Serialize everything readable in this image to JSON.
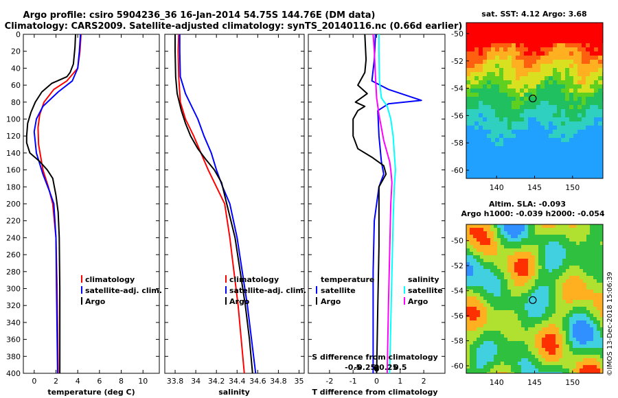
{
  "header": {
    "line1": "Argo profile: csiro 5904236_36 16-Jan-2014 54.75S 144.76E (DM data)",
    "line2": "Climatology: CARS2009. Satellite-adjusted climatology: synTS_20140116.nc (0.66d earlier)"
  },
  "colors": {
    "climatology": "#ff0000",
    "satellite": "#0000ff",
    "argo": "#000000",
    "sat_salinity": "#00ffff",
    "clim_salinity": "#ff00ff"
  },
  "watermark": "©IMOS 13-Dec-2018 15:06:39",
  "chart_data": [
    {
      "type": "line",
      "id": "temperature",
      "xlabel": "temperature (deg C)",
      "ylabel": "",
      "xlim": [
        -1,
        11.5
      ],
      "ylim": [
        400,
        0
      ],
      "xticks": [
        "0",
        "2",
        "4",
        "6",
        "8",
        "10"
      ],
      "xtick_values": [
        0,
        2,
        4,
        6,
        8,
        10
      ],
      "yticks": [
        "0",
        "20",
        "40",
        "60",
        "80",
        "100",
        "120",
        "140",
        "160",
        "180",
        "200",
        "220",
        "240",
        "260",
        "280",
        "300",
        "320",
        "340",
        "360",
        "380",
        "400"
      ],
      "ytick_values": [
        0,
        20,
        40,
        60,
        80,
        100,
        120,
        140,
        160,
        180,
        200,
        220,
        240,
        260,
        280,
        300,
        320,
        340,
        360,
        380,
        400
      ],
      "legend": [
        "climatology",
        "satellite-adj. clim.",
        "Argo"
      ],
      "series": [
        {
          "name": "climatology",
          "color": "#ff0000",
          "points": [
            [
              4.3,
              0
            ],
            [
              4.2,
              20
            ],
            [
              4.0,
              40
            ],
            [
              3.0,
              55
            ],
            [
              1.8,
              65
            ],
            [
              0.9,
              80
            ],
            [
              0.5,
              95
            ],
            [
              0.35,
              110
            ],
            [
              0.4,
              130
            ],
            [
              0.8,
              160
            ],
            [
              1.3,
              180
            ],
            [
              1.7,
              200
            ],
            [
              2.0,
              240
            ],
            [
              2.1,
              300
            ],
            [
              2.15,
              350
            ],
            [
              2.2,
              400
            ]
          ]
        },
        {
          "name": "satellite-adj. clim.",
          "color": "#0000ff",
          "points": [
            [
              4.25,
              0
            ],
            [
              4.15,
              20
            ],
            [
              4.0,
              40
            ],
            [
              3.5,
              55
            ],
            [
              2.2,
              68
            ],
            [
              0.8,
              85
            ],
            [
              0.2,
              100
            ],
            [
              0.0,
              115
            ],
            [
              0.2,
              140
            ],
            [
              0.8,
              165
            ],
            [
              1.4,
              185
            ],
            [
              1.8,
              200
            ],
            [
              2.0,
              240
            ],
            [
              2.05,
              300
            ],
            [
              2.1,
              350
            ],
            [
              2.15,
              400
            ]
          ]
        },
        {
          "name": "Argo",
          "color": "#000000",
          "points": [
            [
              3.8,
              0
            ],
            [
              3.75,
              15
            ],
            [
              3.6,
              35
            ],
            [
              3.3,
              45
            ],
            [
              3.0,
              50
            ],
            [
              1.6,
              58
            ],
            [
              0.7,
              68
            ],
            [
              0.1,
              80
            ],
            [
              -0.3,
              92
            ],
            [
              -0.6,
              105
            ],
            [
              -0.7,
              120
            ],
            [
              -0.7,
              128
            ],
            [
              -0.4,
              140
            ],
            [
              0.5,
              150
            ],
            [
              1.2,
              160
            ],
            [
              1.7,
              170
            ],
            [
              2.0,
              190
            ],
            [
              2.2,
              210
            ],
            [
              2.3,
              240
            ],
            [
              2.35,
              300
            ],
            [
              2.35,
              400
            ]
          ]
        }
      ]
    },
    {
      "type": "line",
      "id": "salinity",
      "xlabel": "salinity",
      "ylabel": "",
      "xlim": [
        33.7,
        35.05
      ],
      "ylim": [
        400,
        0
      ],
      "xticks": [
        "33.8",
        "34",
        "34.2",
        "34.4",
        "34.6",
        "34.8",
        "35"
      ],
      "xtick_values": [
        33.8,
        34.0,
        34.2,
        34.4,
        34.6,
        34.8,
        35.0
      ],
      "legend": [
        "climatology",
        "satellite-adj. clim.",
        "Argo"
      ],
      "series": [
        {
          "name": "climatology",
          "color": "#ff0000",
          "points": [
            [
              33.835,
              0
            ],
            [
              33.83,
              20
            ],
            [
              33.835,
              50
            ],
            [
              33.85,
              80
            ],
            [
              33.9,
              100
            ],
            [
              33.98,
              120
            ],
            [
              34.05,
              140
            ],
            [
              34.12,
              160
            ],
            [
              34.2,
              180
            ],
            [
              34.28,
              200
            ],
            [
              34.33,
              240
            ],
            [
              34.37,
              280
            ],
            [
              34.41,
              320
            ],
            [
              34.44,
              360
            ],
            [
              34.47,
              400
            ]
          ]
        },
        {
          "name": "satellite-adj. clim.",
          "color": "#0000ff",
          "points": [
            [
              33.845,
              0
            ],
            [
              33.845,
              20
            ],
            [
              33.85,
              50
            ],
            [
              33.9,
              70
            ],
            [
              33.96,
              85
            ],
            [
              34.02,
              100
            ],
            [
              34.08,
              120
            ],
            [
              34.15,
              140
            ],
            [
              34.2,
              160
            ],
            [
              34.26,
              180
            ],
            [
              34.33,
              200
            ],
            [
              34.4,
              240
            ],
            [
              34.45,
              280
            ],
            [
              34.5,
              320
            ],
            [
              34.54,
              360
            ],
            [
              34.58,
              400
            ]
          ]
        },
        {
          "name": "Argo",
          "color": "#000000",
          "points": [
            [
              33.8,
              0
            ],
            [
              33.8,
              20
            ],
            [
              33.805,
              50
            ],
            [
              33.82,
              70
            ],
            [
              33.86,
              90
            ],
            [
              33.9,
              105
            ],
            [
              33.95,
              120
            ],
            [
              34.02,
              135
            ],
            [
              34.1,
              148
            ],
            [
              34.18,
              160
            ],
            [
              34.25,
              175
            ],
            [
              34.3,
              200
            ],
            [
              34.38,
              240
            ],
            [
              34.43,
              280
            ],
            [
              34.48,
              320
            ],
            [
              34.52,
              360
            ],
            [
              34.55,
              400
            ]
          ]
        }
      ]
    },
    {
      "type": "line",
      "id": "difference",
      "xlabel": "T difference from climatology",
      "secondary_xlabel": "S difference from climatology",
      "xlim": [
        -2.9,
        2.9
      ],
      "ylim": [
        400,
        0
      ],
      "xticks": [
        "-2",
        "-1",
        "0",
        "1",
        "2"
      ],
      "xtick_values": [
        -2,
        -1,
        0,
        1,
        2
      ],
      "secondary_xticks": [
        "-0.5",
        "-0.25",
        "0",
        "0.25",
        "0.5"
      ],
      "secondary_xtick_values": [
        -0.5,
        -0.25,
        0,
        0.25,
        0.5
      ],
      "legend_left_title": "temperature",
      "legend_right_title": "salinity",
      "legend_left": [
        "satellite",
        "Argo"
      ],
      "legend_right": [
        "satellite",
        "Argo"
      ],
      "series": [
        {
          "name": "T satellite",
          "color": "#0000ff",
          "points": [
            [
              -0.05,
              0
            ],
            [
              -0.1,
              30
            ],
            [
              -0.2,
              55
            ],
            [
              0.5,
              65
            ],
            [
              1.9,
              78
            ],
            [
              0.5,
              82
            ],
            [
              0.05,
              90
            ],
            [
              0.1,
              120
            ],
            [
              0.2,
              150
            ],
            [
              0.3,
              165
            ],
            [
              0.1,
              180
            ],
            [
              -0.1,
              220
            ],
            [
              -0.15,
              280
            ],
            [
              -0.15,
              400
            ]
          ]
        },
        {
          "name": "T Argo",
          "color": "#000000",
          "points": [
            [
              -0.5,
              0
            ],
            [
              -0.45,
              30
            ],
            [
              -0.5,
              45
            ],
            [
              -0.8,
              60
            ],
            [
              -0.4,
              70
            ],
            [
              -0.9,
              80
            ],
            [
              -0.5,
              85
            ],
            [
              -0.8,
              90
            ],
            [
              -1.0,
              100
            ],
            [
              -1.0,
              120
            ],
            [
              -0.8,
              135
            ],
            [
              -0.2,
              145
            ],
            [
              0.3,
              155
            ],
            [
              0.4,
              165
            ],
            [
              0.1,
              180
            ],
            [
              0.1,
              250
            ],
            [
              0.05,
              320
            ],
            [
              0.0,
              400
            ]
          ]
        },
        {
          "name": "S satellite",
          "color": "#00ffff",
          "points": [
            [
              0.1,
              0
            ],
            [
              0.1,
              20
            ],
            [
              0.12,
              55
            ],
            [
              0.2,
              75
            ],
            [
              0.45,
              85
            ],
            [
              0.6,
              100
            ],
            [
              0.7,
              120
            ],
            [
              0.75,
              140
            ],
            [
              0.8,
              160
            ],
            [
              0.75,
              180
            ],
            [
              0.7,
              220
            ],
            [
              0.65,
              280
            ],
            [
              0.6,
              340
            ],
            [
              0.55,
              400
            ]
          ]
        },
        {
          "name": "S Argo",
          "color": "#ff00ff",
          "points": [
            [
              -0.15,
              0
            ],
            [
              -0.1,
              20
            ],
            [
              -0.05,
              50
            ],
            [
              0.0,
              75
            ],
            [
              0.1,
              95
            ],
            [
              0.2,
              110
            ],
            [
              0.3,
              125
            ],
            [
              0.45,
              140
            ],
            [
              0.55,
              150
            ],
            [
              0.6,
              160
            ],
            [
              0.65,
              175
            ],
            [
              0.6,
              200
            ],
            [
              0.55,
              260
            ],
            [
              0.5,
              320
            ],
            [
              0.45,
              400
            ]
          ]
        }
      ]
    },
    {
      "type": "heatmap",
      "id": "sst_map",
      "title": "sat. SST: 4.12 Argo: 3.68",
      "xticks": [
        "140",
        "145",
        "150"
      ],
      "xtick_values": [
        140,
        145,
        150
      ],
      "yticks": [
        "-50",
        "-52",
        "-54",
        "-56",
        "-58",
        "-60"
      ],
      "ytick_values": [
        -50,
        -52,
        -54,
        -56,
        -58,
        -60
      ],
      "xlim": [
        136,
        154
      ],
      "ylim": [
        -60.6,
        -49.2
      ],
      "marker": [
        144.76,
        -54.75
      ]
    },
    {
      "type": "heatmap",
      "id": "sla_map",
      "title_line1": "Altim. SLA: -0.093",
      "title_line2": "Argo h1000: -0.039 h2000: -0.054",
      "xticks": [
        "140",
        "145",
        "150"
      ],
      "xtick_values": [
        140,
        145,
        150
      ],
      "yticks": [
        "-50",
        "-52",
        "-54",
        "-56",
        "-58",
        "-60"
      ],
      "ytick_values": [
        -50,
        -52,
        -54,
        -56,
        -58,
        -60
      ],
      "xlim": [
        136,
        154
      ],
      "ylim": [
        -60.6,
        -48.7
      ],
      "marker": [
        144.76,
        -54.75
      ]
    }
  ]
}
